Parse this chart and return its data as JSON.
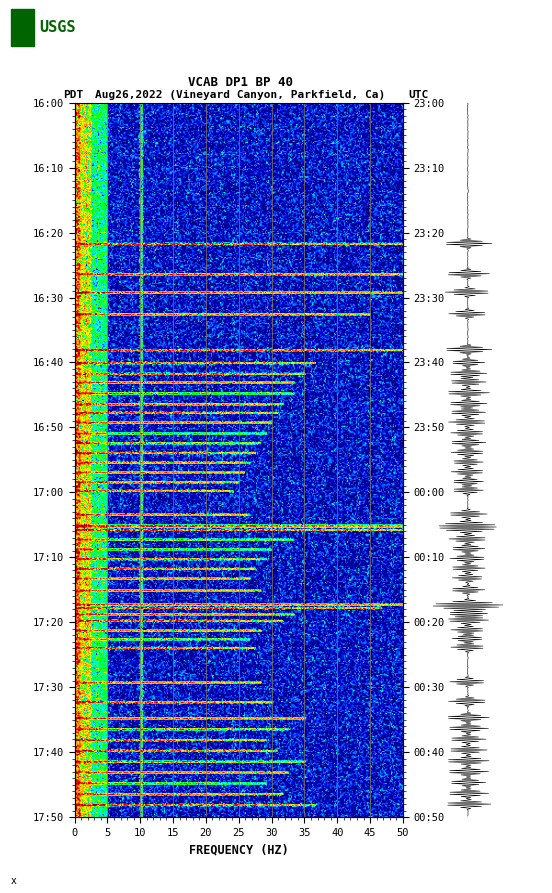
{
  "title_line1": "VCAB DP1 BP 40",
  "title_line2_pdt": "PDT",
  "title_line2_date": "Aug26,2022 (Vineyard Canyon, Parkfield, Ca)",
  "title_line2_utc": "UTC",
  "xlabel": "FREQUENCY (HZ)",
  "freq_min": 0,
  "freq_max": 50,
  "left_time_labels": [
    "16:00",
    "16:10",
    "16:20",
    "16:30",
    "16:40",
    "16:50",
    "17:00",
    "17:10",
    "17:20",
    "17:30",
    "17:40",
    "17:50"
  ],
  "right_time_labels": [
    "23:00",
    "23:10",
    "23:20",
    "23:30",
    "23:40",
    "23:50",
    "00:00",
    "00:10",
    "00:20",
    "00:30",
    "00:40",
    "00:50"
  ],
  "freq_ticks": [
    0,
    5,
    10,
    15,
    20,
    25,
    30,
    35,
    40,
    45,
    50
  ],
  "vert_grid_freqs": [
    5,
    10,
    15,
    20,
    25,
    30,
    35,
    40,
    45
  ],
  "background_color": "#FFFFFF",
  "usgs_green": "#006400",
  "grid_line_color": "#8B7355",
  "fig_width": 5.52,
  "fig_height": 8.93,
  "n_time": 660,
  "n_freq": 300,
  "low_freq_bins": 15,
  "mid_freq_bins": 30,
  "event_rows": [
    [
      130,
      132,
      10.0,
      300,
      1.0
    ],
    [
      158,
      160,
      9.0,
      300,
      1.0
    ],
    [
      175,
      177,
      9.5,
      300,
      1.0
    ],
    [
      195,
      197,
      8.0,
      270,
      0.9
    ],
    [
      228,
      230,
      10.0,
      300,
      1.0
    ],
    [
      240,
      242,
      7.0,
      220,
      0.8
    ],
    [
      250,
      252,
      8.0,
      210,
      0.85
    ],
    [
      258,
      260,
      7.5,
      200,
      0.8
    ],
    [
      268,
      270,
      9.0,
      200,
      0.85
    ],
    [
      278,
      280,
      8.0,
      190,
      0.8
    ],
    [
      286,
      288,
      7.5,
      185,
      0.75
    ],
    [
      295,
      297,
      8.0,
      180,
      0.8
    ],
    [
      305,
      307,
      7.0,
      175,
      0.75
    ],
    [
      314,
      316,
      7.5,
      170,
      0.75
    ],
    [
      323,
      325,
      7.0,
      165,
      0.7
    ],
    [
      332,
      334,
      6.5,
      160,
      0.7
    ],
    [
      341,
      343,
      7.0,
      155,
      0.7
    ],
    [
      350,
      352,
      6.5,
      150,
      0.68
    ],
    [
      358,
      360,
      6.5,
      145,
      0.65
    ],
    [
      380,
      382,
      8.0,
      160,
      0.8
    ],
    [
      390,
      393,
      10.0,
      300,
      1.0
    ],
    [
      394,
      396,
      9.5,
      300,
      1.0
    ],
    [
      403,
      405,
      8.0,
      200,
      0.85
    ],
    [
      412,
      414,
      7.0,
      180,
      0.75
    ],
    [
      421,
      423,
      7.5,
      175,
      0.78
    ],
    [
      430,
      432,
      7.0,
      165,
      0.72
    ],
    [
      439,
      441,
      6.5,
      160,
      0.7
    ],
    [
      450,
      452,
      7.0,
      170,
      0.74
    ],
    [
      463,
      465,
      10.0,
      300,
      1.0
    ],
    [
      466,
      468,
      9.5,
      280,
      0.98
    ],
    [
      472,
      474,
      8.0,
      200,
      0.85
    ],
    [
      478,
      480,
      8.5,
      190,
      0.87
    ],
    [
      487,
      489,
      7.0,
      170,
      0.72
    ],
    [
      495,
      497,
      6.5,
      160,
      0.7
    ],
    [
      503,
      505,
      7.0,
      165,
      0.73
    ],
    [
      535,
      537,
      7.5,
      170,
      0.77
    ],
    [
      553,
      555,
      8.0,
      180,
      0.82
    ],
    [
      568,
      570,
      9.0,
      210,
      0.9
    ],
    [
      578,
      580,
      8.5,
      195,
      0.87
    ],
    [
      588,
      590,
      7.5,
      175,
      0.78
    ],
    [
      598,
      600,
      8.0,
      185,
      0.82
    ],
    [
      608,
      610,
      9.0,
      210,
      0.9
    ],
    [
      618,
      620,
      8.5,
      195,
      0.87
    ],
    [
      628,
      630,
      7.5,
      175,
      0.78
    ],
    [
      638,
      640,
      8.5,
      190,
      0.86
    ],
    [
      648,
      650,
      9.5,
      220,
      0.95
    ]
  ]
}
